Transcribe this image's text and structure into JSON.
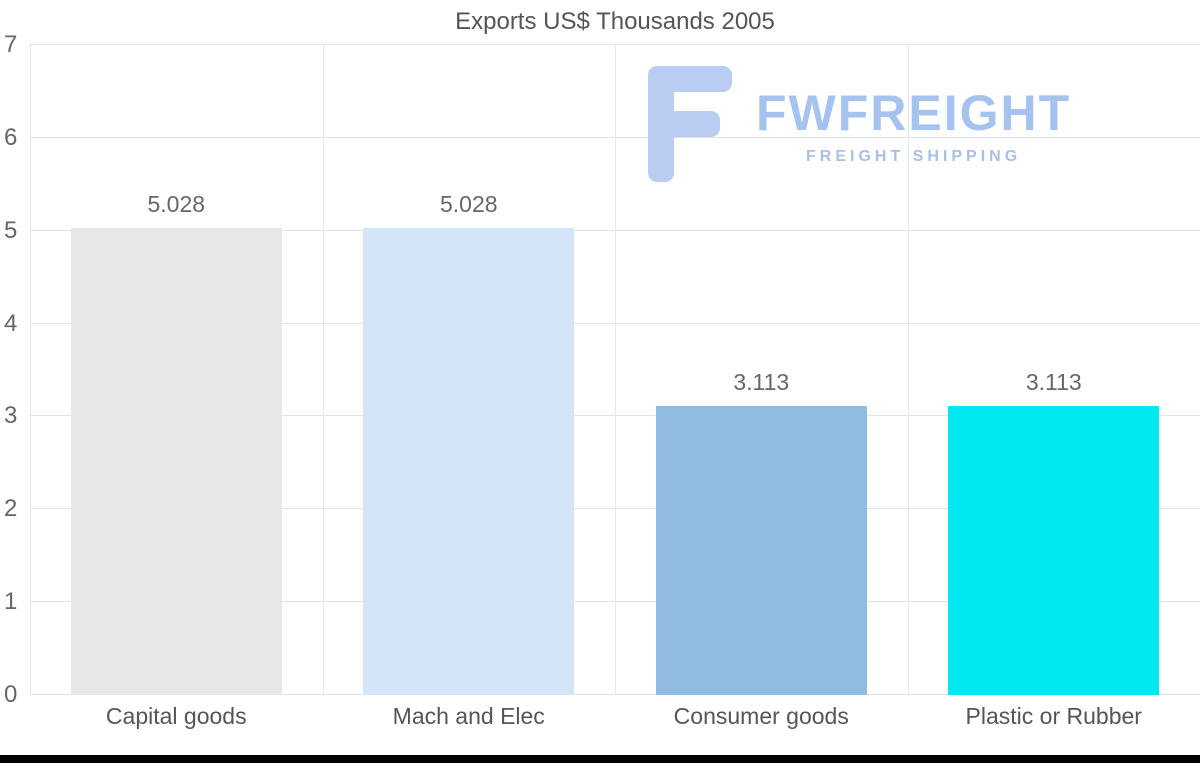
{
  "chart_data": {
    "type": "bar",
    "title": "Exports US$ Thousands 2005",
    "categories": [
      "Capital goods",
      "Mach and Elec",
      "Consumer goods",
      "Plastic or Rubber"
    ],
    "values": [
      5.028,
      5.028,
      3.113,
      3.113
    ],
    "value_labels": [
      "5.028",
      "5.028",
      "3.113",
      "3.113"
    ],
    "bar_colors": [
      "#e7e7e7",
      "#d5e5f8",
      "#8fbce0",
      "#00e8f0"
    ],
    "xlabel": "",
    "ylabel": "",
    "ylim": [
      0,
      7
    ],
    "yticks": [
      0,
      1,
      2,
      3,
      4,
      5,
      6,
      7
    ],
    "grid": true,
    "legend": false
  },
  "watermark": {
    "brand": "FWFREIGHT",
    "tagline": "FREIGHT SHIPPING",
    "icon": "fwfreight-f-glyph",
    "color": "#a6c3f0"
  },
  "colors": {
    "gridline": "#e2e2e2",
    "axis_text": "#666666",
    "title_text": "#555555",
    "bottom_strip": "#000000"
  }
}
